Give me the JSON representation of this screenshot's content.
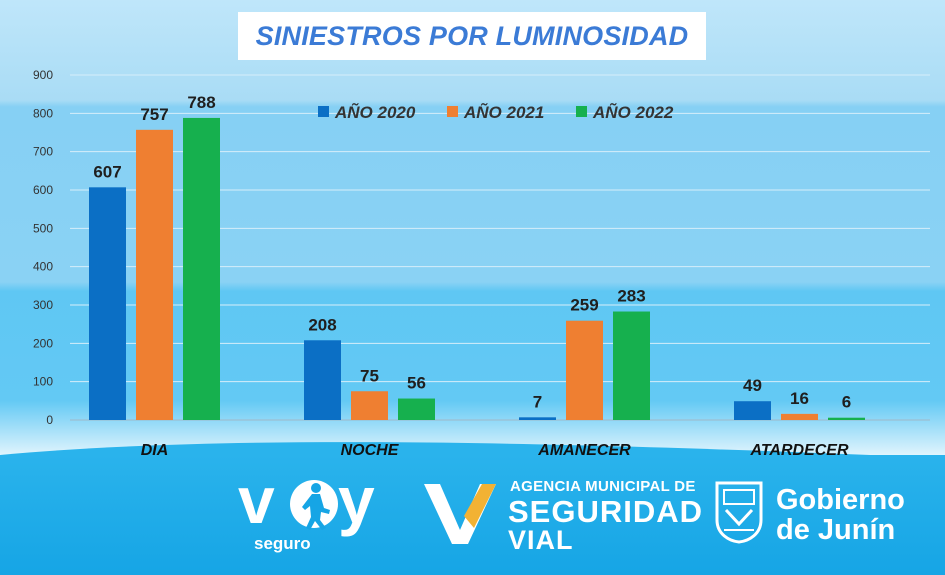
{
  "chart_data": {
    "type": "bar",
    "title": "SINIESTROS POR LUMINOSIDAD",
    "categories": [
      "DIA",
      "NOCHE",
      "AMANECER",
      "ATARDECER"
    ],
    "series": [
      {
        "name": "AÑO 2020",
        "color": "#0b6fc5",
        "values": [
          607,
          208,
          7,
          49
        ]
      },
      {
        "name": "AÑO 2021",
        "color": "#ef7f31",
        "values": [
          757,
          75,
          259,
          16
        ]
      },
      {
        "name": "AÑO 2022",
        "color": "#16b04e",
        "values": [
          788,
          56,
          283,
          6
        ]
      }
    ],
    "ylim": [
      0,
      900
    ],
    "yticks": [
      "0",
      "100",
      "200",
      "300",
      "400",
      "500",
      "600",
      "700",
      "800",
      "900"
    ],
    "grid": true,
    "legend_position": "top-center",
    "xlabel": "",
    "ylabel": ""
  },
  "logos": {
    "voy": {
      "main": "voy",
      "sub": "seguro"
    },
    "agencia": {
      "line1": "AGENCIA MUNICIPAL DE",
      "line2": "SEGURIDAD",
      "line3": "VIAL"
    },
    "gobierno": {
      "line1": "Gobierno",
      "line2": "de Junín"
    }
  },
  "colors": {
    "footer": "#16a5e5",
    "title_text": "#3b7bd6",
    "accent_gold": "#f2b233"
  }
}
